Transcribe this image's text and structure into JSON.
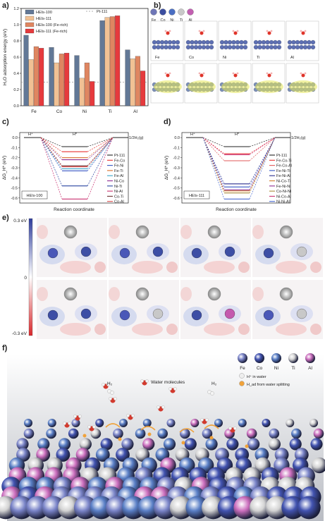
{
  "panel_labels": {
    "a": "a)",
    "b": "b)",
    "c": "c)",
    "d": "d)",
    "e": "e)",
    "f": "f)"
  },
  "colors": {
    "hei100": "#627896",
    "hei111": "#f1c194",
    "hei100fe": "#df8661",
    "hei111fe": "#e63a3d",
    "pt": "#9b9b9b"
  },
  "chart_data": [
    {
      "type": "bar",
      "categories": [
        "Fe",
        "Co",
        "Ni",
        "Ti",
        "Al"
      ],
      "ylabel": "H₂O adsorption energy (eV)",
      "ylim": [
        0.0,
        1.2
      ],
      "yticks": [
        "0.0",
        "0.2",
        "0.4",
        "0.6",
        "0.8",
        "1.0",
        "1.2"
      ],
      "reference_line": {
        "name": "Pt-111",
        "value": 0.29
      },
      "series": [
        {
          "name": "HEIs-100",
          "values": [
            0.87,
            0.72,
            0.62,
            1.05,
            0.69
          ]
        },
        {
          "name": "HEIs-111",
          "values": [
            0.57,
            0.53,
            0.34,
            1.09,
            0.58
          ]
        },
        {
          "name": "HEIs-100 (Fe-rich)",
          "values": [
            0.73,
            0.64,
            0.53,
            1.1,
            0.61
          ]
        },
        {
          "name": "HEIs-111 (Fe-rich)",
          "values": [
            0.71,
            0.65,
            0.3,
            1.11,
            0.43
          ]
        }
      ]
    },
    {
      "type": "line",
      "tag": "HEIs-100",
      "xlabel": "Reaction coordinate",
      "ylabel": "ΔG_H* (eV)",
      "ylim": [
        -0.65,
        0.05
      ],
      "yticks": [
        "0.0",
        "-0.1",
        "-0.2",
        "-0.3",
        "-0.4",
        "-0.5",
        "-0.6"
      ],
      "states": [
        "H⁺",
        "H*",
        "1/2H₂(g)"
      ],
      "series": [
        {
          "name": "Pt-111",
          "value": -0.09,
          "color": "#222222"
        },
        {
          "name": "Fe-Co",
          "value": -0.14,
          "color": "#e8302f"
        },
        {
          "name": "Fe-Ni",
          "value": -0.33,
          "color": "#3455c2"
        },
        {
          "name": "Fe-Ti",
          "value": -0.2,
          "color": "#d86c2a"
        },
        {
          "name": "Fe-Al",
          "value": -0.31,
          "color": "#3aa6c8"
        },
        {
          "name": "Ni-Co",
          "value": -0.22,
          "color": "#8e2b91"
        },
        {
          "name": "Ni-Ti",
          "value": -0.48,
          "color": "#2a44a0"
        },
        {
          "name": "Ni-Al",
          "value": -0.61,
          "color": "#c93070"
        },
        {
          "name": "Co-Ti",
          "value": -0.28,
          "color": "#6b2f2f"
        },
        {
          "name": "Co-Al",
          "value": -0.29,
          "color": "#d94a4a"
        }
      ]
    },
    {
      "type": "line",
      "tag": "HEIs-111",
      "xlabel": "Reaction coordinate",
      "ylabel": "ΔG_H* (eV)",
      "ylim": [
        -0.65,
        0.05
      ],
      "yticks": [
        "0.0",
        "-0.1",
        "-0.2",
        "-0.3",
        "-0.4",
        "-0.5",
        "-0.6"
      ],
      "states": [
        "H⁺",
        "H*",
        "1/2H₂(g)"
      ],
      "series": [
        {
          "name": "Pt-111",
          "value": -0.09,
          "color": "#222222"
        },
        {
          "name": "Fe-Co-Ti",
          "value": -0.16,
          "color": "#e8302f"
        },
        {
          "name": "Fe-Co-Al",
          "value": -0.23,
          "color": "#e05a5a"
        },
        {
          "name": "Fe-Ni-Ti",
          "value": -0.49,
          "color": "#3455c2"
        },
        {
          "name": "Fe-Ni-Al",
          "value": -0.46,
          "color": "#2b2f8f"
        },
        {
          "name": "Ni-Co-Ti",
          "value": -0.53,
          "color": "#d07a2a"
        },
        {
          "name": "Fe-Ni-Ni",
          "value": -0.52,
          "color": "#8e2b91"
        },
        {
          "name": "Co-Ni-Ni",
          "value": -0.55,
          "color": "#a98a3a"
        },
        {
          "name": "Ni-Co-Al",
          "value": -0.17,
          "color": "#c93070"
        },
        {
          "name": "Ni-Ni-Al",
          "value": -0.61,
          "color": "#4a6ad0"
        }
      ]
    }
  ],
  "panel_b": {
    "legend": [
      "Fe",
      "Co",
      "Ni",
      "Ti",
      "Al"
    ],
    "structure_labels": [
      "Fe",
      "Co",
      "Ni",
      "Ti",
      "Al"
    ]
  },
  "panel_e": {
    "scale_max": "0.3 eV",
    "scale_mid": "0",
    "scale_min": "-0.3 eV"
  },
  "panel_f": {
    "legend": [
      "Fe",
      "Co",
      "Ni",
      "Ti",
      "Al"
    ],
    "h_in_water": "H⁺ in water",
    "h_ad": "H_ad from water splitting",
    "water_molecules": "Water molecules",
    "h2_left": "H₂",
    "h2_right": "H₂"
  }
}
